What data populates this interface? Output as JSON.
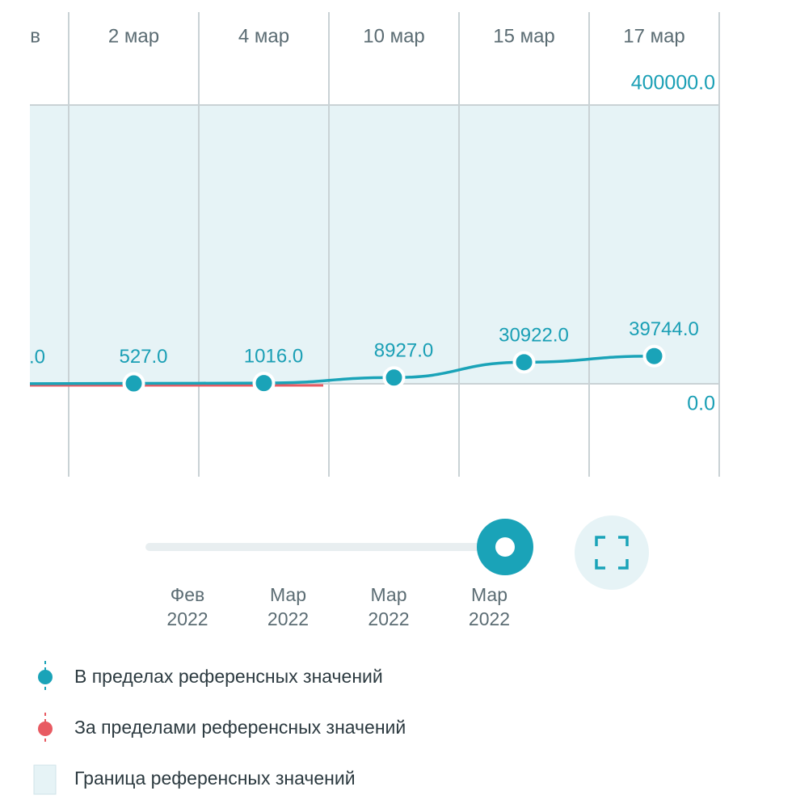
{
  "chart_data": {
    "type": "line",
    "categories": [
      "в",
      "2 мар",
      "4 мар",
      "10 мар",
      "15 мар",
      "17 мар"
    ],
    "series": [
      {
        "name": "В пределах референсных значений",
        "color": "#1aa3b8",
        "values": [
          0,
          527,
          1016,
          8927,
          30922,
          39744
        ],
        "value_labels": [
          ".0",
          "527.0",
          "1016.0",
          "8927.0",
          "30922.0",
          "39744.0"
        ]
      }
    ],
    "out_of_range": {
      "name": "За пределами референсных значений",
      "color": "#e85a62"
    },
    "reference_band": {
      "name": "Граница референсных значений",
      "color": "#e6f3f6"
    },
    "ylim": [
      0,
      400000
    ],
    "yticks": [
      {
        "value": 0,
        "label": "0.0"
      },
      {
        "value": 400000,
        "label": "400000.0"
      }
    ]
  },
  "slider": {
    "ticks": [
      {
        "month": "Фев",
        "year": "2022"
      },
      {
        "month": "Мар",
        "year": "2022"
      },
      {
        "month": "Мар",
        "year": "2022"
      },
      {
        "month": "Мар",
        "year": "2022"
      }
    ]
  }
}
